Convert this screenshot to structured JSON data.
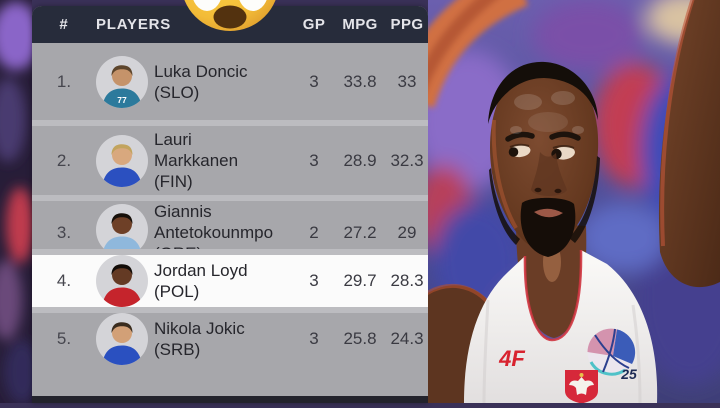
{
  "overlay": {
    "emoji": "shocked-face"
  },
  "stats_table": {
    "headers": {
      "rank": "#",
      "players": "PLAYERS",
      "gp": "GP",
      "mpg": "MPG",
      "ppg": "PPG"
    },
    "rows": [
      {
        "rank": "1.",
        "name_lines": [
          "Luka Doncic",
          "(SLO)"
        ],
        "gp": "3",
        "mpg": "33.8",
        "ppg": "33",
        "highlight": false,
        "avatar": {
          "skin": "#c5936a",
          "hair": "#5d452c",
          "jersey": "#2c7a9c",
          "number": "77"
        }
      },
      {
        "rank": "2.",
        "name_lines": [
          "Lauri",
          "Markkanen",
          "(FIN)"
        ],
        "gp": "3",
        "mpg": "28.9",
        "ppg": "32.3",
        "highlight": false,
        "avatar": {
          "skin": "#d8a87e",
          "hair": "#c2a45e",
          "jersey": "#2b50c0",
          "number": ""
        }
      },
      {
        "rank": "3.",
        "name_lines": [
          "Giannis",
          "Antetokounmpo",
          "(GRE)"
        ],
        "gp": "2",
        "mpg": "27.2",
        "ppg": "29",
        "highlight": false,
        "avatar": {
          "skin": "#6e4027",
          "hair": "#17100a",
          "jersey": "#8fb8dc",
          "number": ""
        }
      },
      {
        "rank": "4.",
        "name_lines": [
          "Jordan Loyd",
          "(POL)"
        ],
        "gp": "3",
        "mpg": "29.7",
        "ppg": "28.3",
        "highlight": true,
        "avatar": {
          "skin": "#643a24",
          "hair": "#120c08",
          "jersey": "#c5242c",
          "number": ""
        }
      },
      {
        "rank": "5.",
        "name_lines": [
          "Nikola Jokic",
          "(SRB)"
        ],
        "gp": "3",
        "mpg": "25.8",
        "ppg": "24.3",
        "highlight": false,
        "avatar": {
          "skin": "#d2a077",
          "hair": "#3a2c1e",
          "jersey": "#2a50c0",
          "number": ""
        }
      }
    ]
  },
  "photo": {
    "sponsor_logo": "4F",
    "badge_text": "25"
  },
  "colors": {
    "header_bg": "#272c3b",
    "header_text": "#e4e4e9",
    "row_bg": "#a7a7ab",
    "row_highlight_bg": "#fbfbfb",
    "separator": "#bcbcc0",
    "footer_bar": "#23232c",
    "sponsor_red": "#d8232f",
    "jersey_white": "#f3f1ee",
    "crest_red": "#d6283a"
  }
}
